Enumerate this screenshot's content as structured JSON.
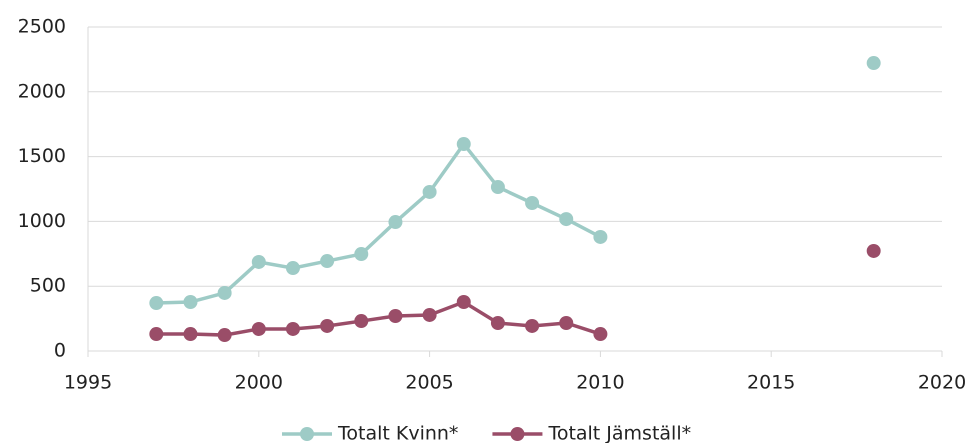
{
  "chart_data": {
    "type": "line",
    "x": [
      1997,
      1998,
      1999,
      2000,
      2001,
      2002,
      2003,
      2004,
      2005,
      2006,
      2007,
      2008,
      2009,
      2010,
      2011,
      2012,
      2013,
      2014,
      2015,
      2016,
      2017,
      2018
    ],
    "series": [
      {
        "name": "Totalt Kvinn*",
        "color": "#9ecbc6",
        "values": [
          370,
          378,
          448,
          687,
          640,
          694,
          748,
          995,
          1227,
          1597,
          1265,
          1142,
          1018,
          880,
          null,
          null,
          null,
          null,
          null,
          null,
          null,
          2222
        ]
      },
      {
        "name": "Totalt Jämställ*",
        "color": "#9a4d68",
        "values": [
          131,
          131,
          123,
          170,
          170,
          193,
          231,
          270,
          278,
          378,
          216,
          193,
          216,
          131,
          null,
          null,
          null,
          null,
          null,
          null,
          null,
          772
        ]
      }
    ],
    "xlim": [
      1995,
      2020
    ],
    "xticks": [
      1995,
      2000,
      2005,
      2010,
      2015,
      2020
    ],
    "ylim": [
      0,
      2500
    ],
    "yticks": [
      0,
      500,
      1000,
      1500,
      2000,
      2500
    ],
    "grid": true,
    "legend": "bottom"
  }
}
